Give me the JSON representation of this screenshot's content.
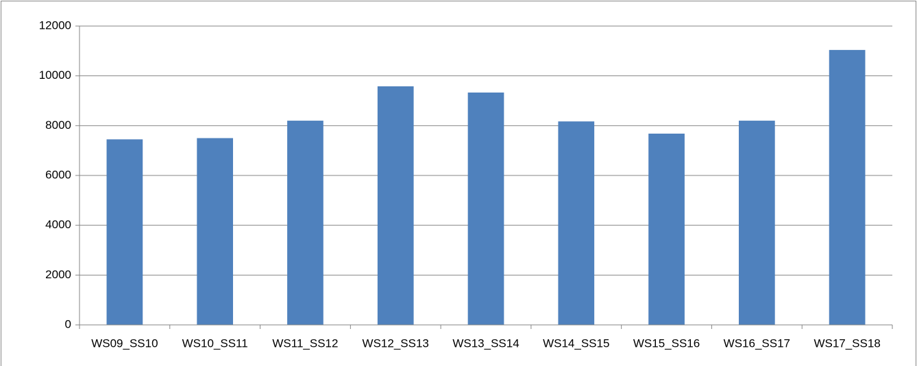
{
  "chart_data": {
    "type": "bar",
    "categories": [
      "WS09_SS10",
      "WS10_SS11",
      "WS11_SS12",
      "WS12_SS13",
      "WS13_SS14",
      "WS14_SS15",
      "WS15_SS16",
      "WS16_SS17",
      "WS17_SS18"
    ],
    "values": [
      7450,
      7500,
      8200,
      9580,
      9330,
      8170,
      7680,
      8200,
      11040
    ],
    "color": "#4f81bd",
    "ylim": [
      0,
      12000
    ],
    "yticks": [
      0,
      2000,
      4000,
      6000,
      8000,
      10000,
      12000
    ],
    "grid": true
  }
}
